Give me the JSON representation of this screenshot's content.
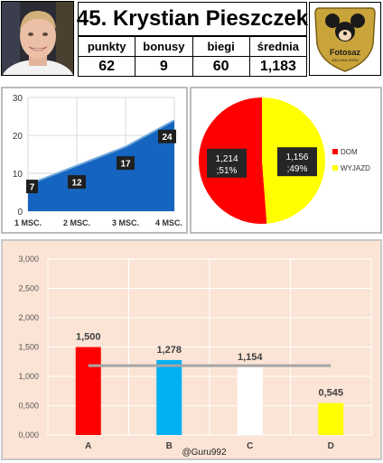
{
  "player": {
    "name": "45. Krystian Pieszczek",
    "stats_headers": [
      "punkty",
      "bonusy",
      "biegi",
      "średnia"
    ],
    "stats_values": [
      "62",
      "9",
      "60",
      "1,183"
    ]
  },
  "logo": {
    "text": "Fotosaz",
    "subtext": "ZIELONA GÓRA",
    "color": "#c9a43a"
  },
  "colors": {
    "area_fill": "#1565c0",
    "pie_home": "#ff0000",
    "pie_away": "#ffff00",
    "bar_a": "#ff0000",
    "bar_b": "#00b0f0",
    "bar_c": "#ffffff",
    "bar_d": "#ffff00",
    "avg_line": "#a6a6a6",
    "bar_panel_bg": "#fbe4d5"
  },
  "chart_data": [
    {
      "type": "area",
      "categories": [
        "1 MSC.",
        "2 MSC.",
        "3 MSC.",
        "4 MSC."
      ],
      "values": [
        7,
        12,
        17,
        24
      ],
      "data_labels": [
        "7",
        "12",
        "17",
        "24"
      ],
      "yticks": [
        "0",
        "10",
        "20",
        "30"
      ],
      "ylim": [
        0,
        30
      ],
      "grid": true
    },
    {
      "type": "pie",
      "labels": [
        "DOM",
        "WYJAZD"
      ],
      "values": [
        1.214,
        1.156
      ],
      "percents": [
        51,
        49
      ],
      "data_labels": [
        [
          "1,214",
          ";51%"
        ],
        [
          "1,156",
          ";49%"
        ]
      ],
      "legend": "right"
    },
    {
      "type": "bar",
      "categories": [
        "A",
        "B",
        "C",
        "D"
      ],
      "values": [
        1.5,
        1.278,
        1.154,
        0.545
      ],
      "data_labels": [
        "1,500",
        "1,278",
        "1,154",
        "0,545"
      ],
      "reference_line": 1.183,
      "yticks": [
        "0,000",
        "0,500",
        "1,000",
        "1,500",
        "2,000",
        "2,500",
        "3,000"
      ],
      "ylim": [
        0,
        3
      ],
      "grid": true
    }
  ],
  "credit": "@Guru992"
}
